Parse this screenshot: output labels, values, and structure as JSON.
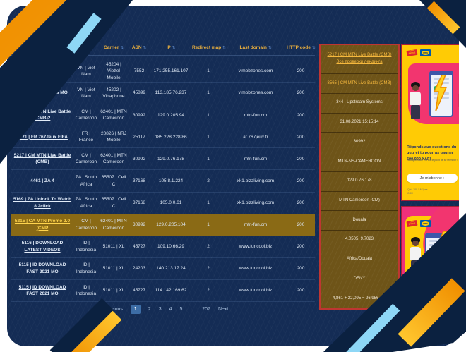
{
  "table": {
    "sort_icon": "⇅",
    "headers": [
      "Carrier",
      "ASN",
      "IP",
      "Redirect map",
      "Last domain",
      "HTTP code"
    ],
    "rows": [
      {
        "name": "",
        "country": "VN | Viet Nam",
        "operator": "45204 | Viettel Mobile",
        "asn": "7552",
        "ip": "171.255.161.107",
        "redirect": "1",
        "domain": "v.mobzones.com",
        "code": "200",
        "highlighted": false
      },
      {
        "name": "odestake 3 carriers MO",
        "country": "VN | Viet Nam",
        "operator": "45202 | Vinaphone",
        "asn": "45899",
        "ip": "113.185.76.237",
        "redirect": "1",
        "domain": "v.mobzones.com",
        "code": "200",
        "highlighted": false
      },
      {
        "name": "5218 | CM MTN Live Battle (CMB)2",
        "country": "CM | Cameroon",
        "operator": "62401 | MTN Cameroon",
        "asn": "30992",
        "ip": "129.0.205.94",
        "redirect": "1",
        "domain": "mtn-fun.cm",
        "code": "200",
        "highlighted": false
      },
      {
        "name": "5271 | FR 767Jeux FIFA",
        "country": "FR | France",
        "operator": "20826 | NRJ Mobile",
        "asn": "25117",
        "ip": "185.228.228.86",
        "redirect": "1",
        "domain": "af.767jeux.fr",
        "code": "200",
        "highlighted": false
      },
      {
        "name": "5217 | CM MTN Live Battle (CMB)",
        "country": "CM | Cameroon",
        "operator": "62401 | MTN Cameroon",
        "asn": "30992",
        "ip": "129.0.76.178",
        "redirect": "1",
        "domain": "mtn-fun.cm",
        "code": "200",
        "highlighted": false
      },
      {
        "name": "4461 | ZA 4",
        "country": "ZA | South Africa",
        "operator": "65507 | Cell C",
        "asn": "37168",
        "ip": "105.8.1.224",
        "redirect": "2",
        "domain": "xk1.bizzliving.com",
        "code": "200",
        "highlighted": false
      },
      {
        "name": "5169 | ZA Unlock To Watch 8 2click",
        "country": "ZA | South Africa",
        "operator": "65507 | Cell C",
        "asn": "37168",
        "ip": "105.0.0.61",
        "redirect": "1",
        "domain": "xk1.bizzliving.com",
        "code": "200",
        "highlighted": false
      },
      {
        "name": "5215 | CA MTN Promo 2.0 (CMP",
        "country": "CM | Cameroon",
        "operator": "62401 | MTN Cameroon",
        "asn": "30992",
        "ip": "129.0.205.104",
        "redirect": "1",
        "domain": "mtn-fun.cm",
        "code": "200",
        "highlighted": true
      },
      {
        "name": "5116 | DOWNLOAD LATEST VIDEOS",
        "country": "ID | Indonesia",
        "operator": "51011 | XL",
        "asn": "45727",
        "ip": "109.10.66.29",
        "redirect": "2",
        "domain": "www.funcool.biz",
        "code": "200",
        "highlighted": false
      },
      {
        "name": "5115 | ID DOWNLOAD FAST 2021 MO",
        "country": "ID | Indonesia",
        "operator": "51011 | XL",
        "asn": "24203",
        "ip": "140.213.17.24",
        "redirect": "2",
        "domain": "www.funcool.biz",
        "code": "200",
        "highlighted": false
      },
      {
        "name": "5115 | ID DOWNLOAD FAST 2021 MO",
        "country": "ID | Indonesia",
        "operator": "51011 | XL",
        "asn": "45727",
        "ip": "114.142.169.62",
        "redirect": "2",
        "domain": "www.funcool.biz",
        "code": "200",
        "highlighted": false
      }
    ]
  },
  "pagination": {
    "items": [
      {
        "label": "Previous",
        "active": false
      },
      {
        "label": "1",
        "active": true
      },
      {
        "label": "2",
        "active": false
      },
      {
        "label": "3",
        "active": false
      },
      {
        "label": "4",
        "active": false
      },
      {
        "label": "5",
        "active": false
      },
      {
        "label": "...",
        "active": false
      },
      {
        "label": "207",
        "active": false
      },
      {
        "label": "Next",
        "active": false
      }
    ]
  },
  "sidebar": {
    "cells": [
      {
        "lines": [
          {
            "text": "5217 | CM MTN Live Battle (CMB)",
            "link": true
          },
          {
            "text": "Все проверки лендинга",
            "link": true
          }
        ]
      },
      {
        "lines": [
          {
            "text": "3565 | CM MTN Live Battle (CMB)",
            "link": true
          }
        ]
      },
      {
        "lines": [
          {
            "text": "344 | Upstream Systems",
            "link": false
          }
        ]
      },
      {
        "lines": [
          {
            "text": "31.08.2021 15:15:14",
            "link": false
          }
        ]
      },
      {
        "lines": [
          {
            "text": "30992",
            "link": false
          }
        ]
      },
      {
        "lines": [
          {
            "text": "MTN-NS-CAMEROON",
            "link": false
          }
        ]
      },
      {
        "lines": [
          {
            "text": "129.0.76.178",
            "link": false
          }
        ]
      },
      {
        "lines": [
          {
            "text": "MTN Cameroon (CM)",
            "link": false
          }
        ]
      },
      {
        "lines": [
          {
            "text": "Douala",
            "link": false
          }
        ]
      },
      {
        "lines": [
          {
            "text": "4.0505, 9.7023",
            "link": false
          }
        ]
      },
      {
        "lines": [
          {
            "text": "Africa/Douala",
            "link": false
          }
        ]
      },
      {
        "lines": [
          {
            "text": "DENY",
            "link": false
          }
        ]
      },
      {
        "lines": [
          {
            "text": "4,861 + 22,095 = 26,956 сек",
            "link": false
          }
        ]
      }
    ]
  },
  "ads": {
    "ad1": {
      "logo_live_battle": "LIVE BATTLE",
      "logo_mtn": "MTN",
      "headline": "Réponds aux questions du quiz et tu pourras gagner 500.000 XAF!",
      "subtext": "La disponibilité est sur le point de se terminer !",
      "button": "Je m'abonne ›",
      "footnote": "Quiz 100 XAF/jour",
      "footnote2": "CGU"
    },
    "ad2": {
      "logo_live_battle": "LIVE BATTLE",
      "logo_mtn": "MTN"
    }
  },
  "colors": {
    "card_bg": "#142c55",
    "accent_gold": "#eeb23e",
    "highlight_row": "#8a6a15",
    "sidebar_bg": "#6e5418",
    "sidebar_border_red": "#bf3632",
    "ad_yellow": "#ffcb05",
    "ad_pink": "#f2356f",
    "deco_navy": "#0b2140",
    "deco_blue": "#8ed7f6",
    "deco_orange": "#f08f00"
  }
}
